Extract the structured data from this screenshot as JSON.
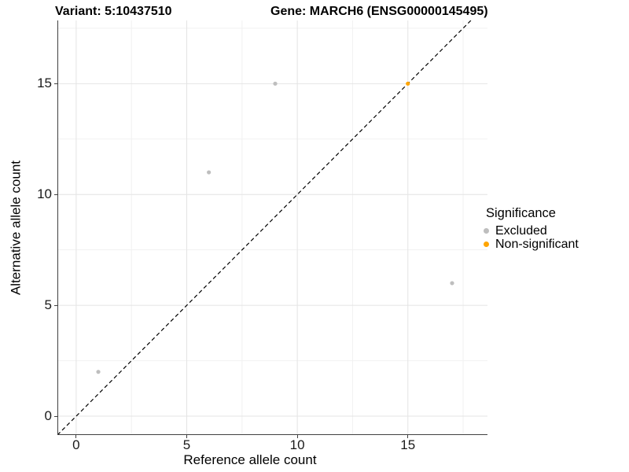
{
  "titles": {
    "variant": "Variant: 5:10437510",
    "gene": "Gene: MARCH6 (ENSG00000145495)"
  },
  "chart_data": {
    "type": "scatter",
    "xlabel": "Reference allele count",
    "ylabel": "Alternative allele count",
    "x_ticks": [
      0,
      5,
      10,
      15
    ],
    "y_ticks": [
      0,
      5,
      10,
      15
    ],
    "x_minor_ticks": [
      2.5,
      7.5,
      12.5,
      17.5
    ],
    "y_minor_ticks": [
      2.5,
      7.5,
      12.5,
      17.5
    ],
    "xlim": [
      -0.85,
      18.6
    ],
    "ylim": [
      -0.85,
      17.85
    ],
    "grid": true,
    "legend": {
      "title": "Significance",
      "position": "right"
    },
    "reference_line": {
      "type": "abline",
      "slope": 1,
      "intercept": 0,
      "style": "dashed",
      "color": "#000000"
    },
    "series": [
      {
        "name": "Excluded",
        "color": "#bebebe",
        "points": [
          {
            "x": 1,
            "y": 2
          },
          {
            "x": 6,
            "y": 11
          },
          {
            "x": 9,
            "y": 15
          },
          {
            "x": 17,
            "y": 6
          }
        ]
      },
      {
        "name": "Non-significant",
        "color": "#ffa500",
        "points": [
          {
            "x": 15,
            "y": 15
          }
        ]
      }
    ],
    "colors": {
      "grid_major": "#e4e4e4",
      "grid_minor": "#f1f1f1",
      "axis_line": "#404040",
      "tick_text": "#1a1a1a"
    }
  }
}
